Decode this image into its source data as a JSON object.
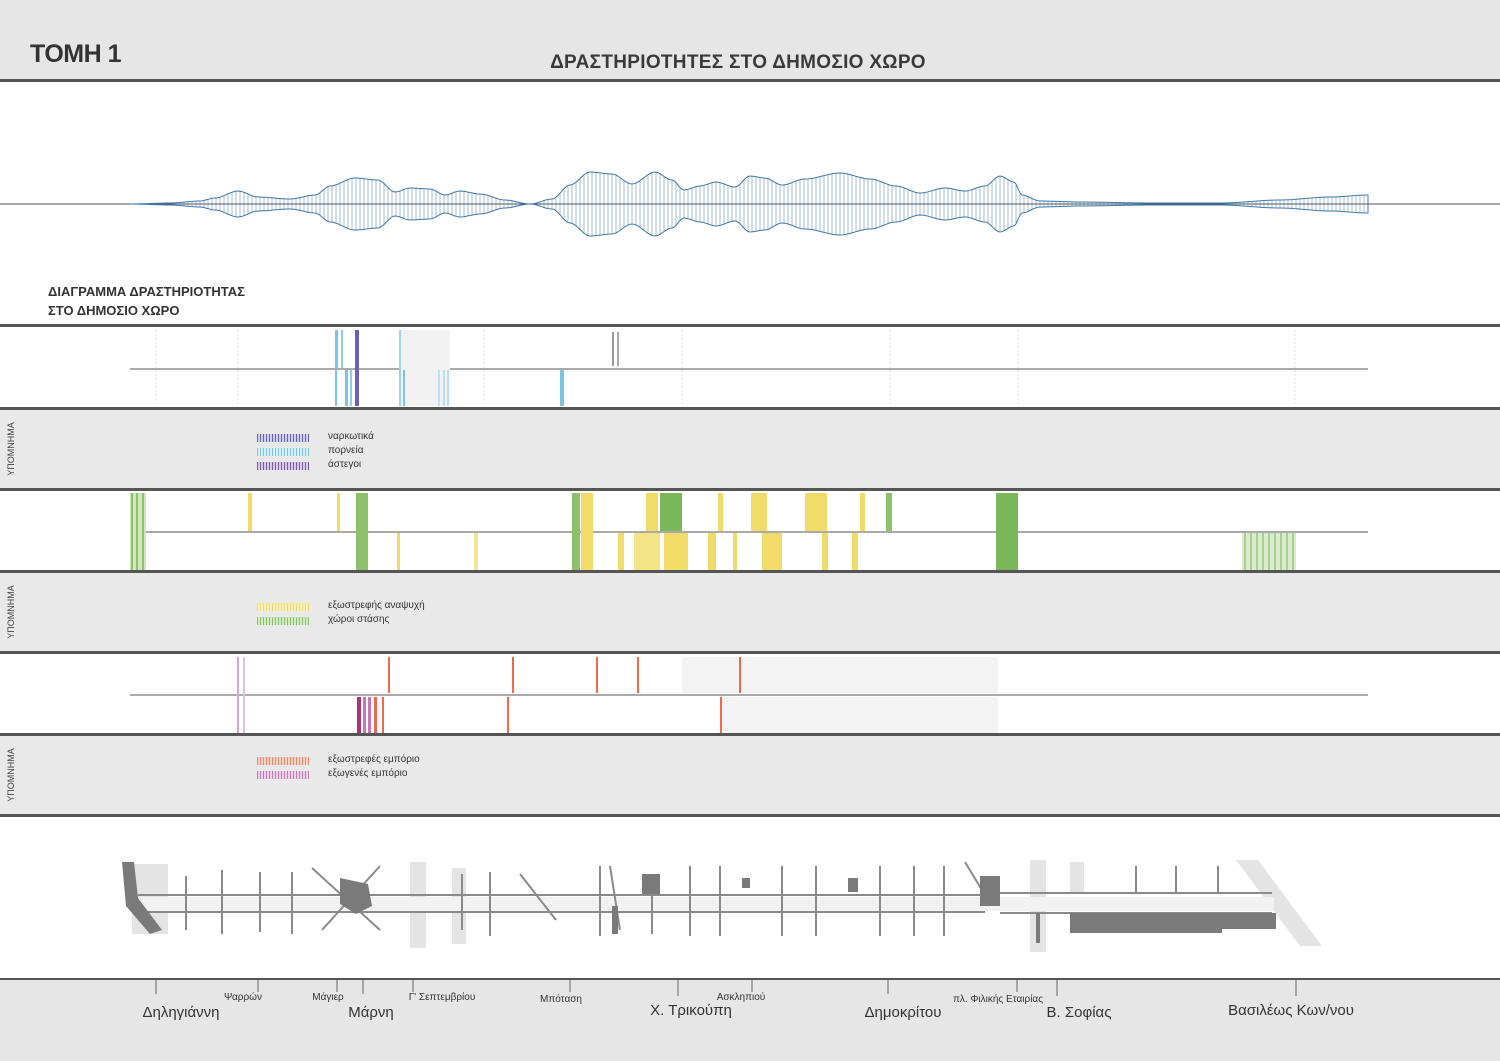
{
  "header": {
    "page_title": "ΤΟΜΗ 1",
    "main_title": "ΔΡΑΣΤΗΡΙΟΤΗΤΕΣ ΣΤΟ ΔΗΜΟΣΙΟ ΧΩΡΟ"
  },
  "diagram_caption": {
    "line1": "ΔΙΑΓΡΑΜΜΑ ΔΡΑΣΤΗΡΙΟΤΗΤΑΣ",
    "line2": "ΣΤΟ ΔΗΜΟΣΙΟ ΧΩΡΟ"
  },
  "legends": [
    {
      "tab_label": "ΥΠΟΜΝΗΜΑ",
      "items": [
        {
          "label": "ναρκωτικά",
          "color": "#6b62b8"
        },
        {
          "label": "πορνεία",
          "color": "#7cc3e8"
        },
        {
          "label": "άστεγοι",
          "color": "#7a5aa8"
        }
      ]
    },
    {
      "tab_label": "ΥΠΟΜΝΗΜΑ",
      "items": [
        {
          "label": "εξωστρεφής αναψυχή",
          "color": "#f1dc6a"
        },
        {
          "label": "χώροι στάσης",
          "color": "#8cc26a"
        }
      ]
    },
    {
      "tab_label": "ΥΠΟΜΝΗΜΑ",
      "items": [
        {
          "label": "εξωστρεφές εμπόριο",
          "color": "#ef8a6a"
        },
        {
          "label": "εξωγενές εμπόριο",
          "color": "#c877b8"
        }
      ]
    }
  ],
  "streets": [
    {
      "label": "Δηληγιάννη",
      "size": "big"
    },
    {
      "label": "Ψαρρών",
      "size": "small"
    },
    {
      "label": "Μάγιερ",
      "size": "small"
    },
    {
      "label": "Μάρνη",
      "size": "big"
    },
    {
      "label": "Γ' Σεπτεμβρίου",
      "size": "small"
    },
    {
      "label": "Μπόταση",
      "size": "small"
    },
    {
      "label": "Χ. Τρικούπη",
      "size": "big"
    },
    {
      "label": "Ασκληπιού",
      "size": "small"
    },
    {
      "label": "Δημοκρίτου",
      "size": "big"
    },
    {
      "label": "πλ. Φιλικής Εταιρίας",
      "size": "small"
    },
    {
      "label": "Β. Σοφίας",
      "size": "big"
    },
    {
      "label": "Βασιλέως Κων/νου",
      "size": "big"
    }
  ],
  "colors": {
    "activity_wave": "#3f77a8",
    "drugs": "#6b62b8",
    "prostitution": "#7cc3e8",
    "homeless": "#7a5aa8",
    "leisure": "#f1dc6a",
    "rest_areas": "#8cc26a",
    "outward_commerce": "#ef8a6a",
    "exogenous_commerce": "#c877b8",
    "plan_fill": "#7a7a7a"
  }
}
